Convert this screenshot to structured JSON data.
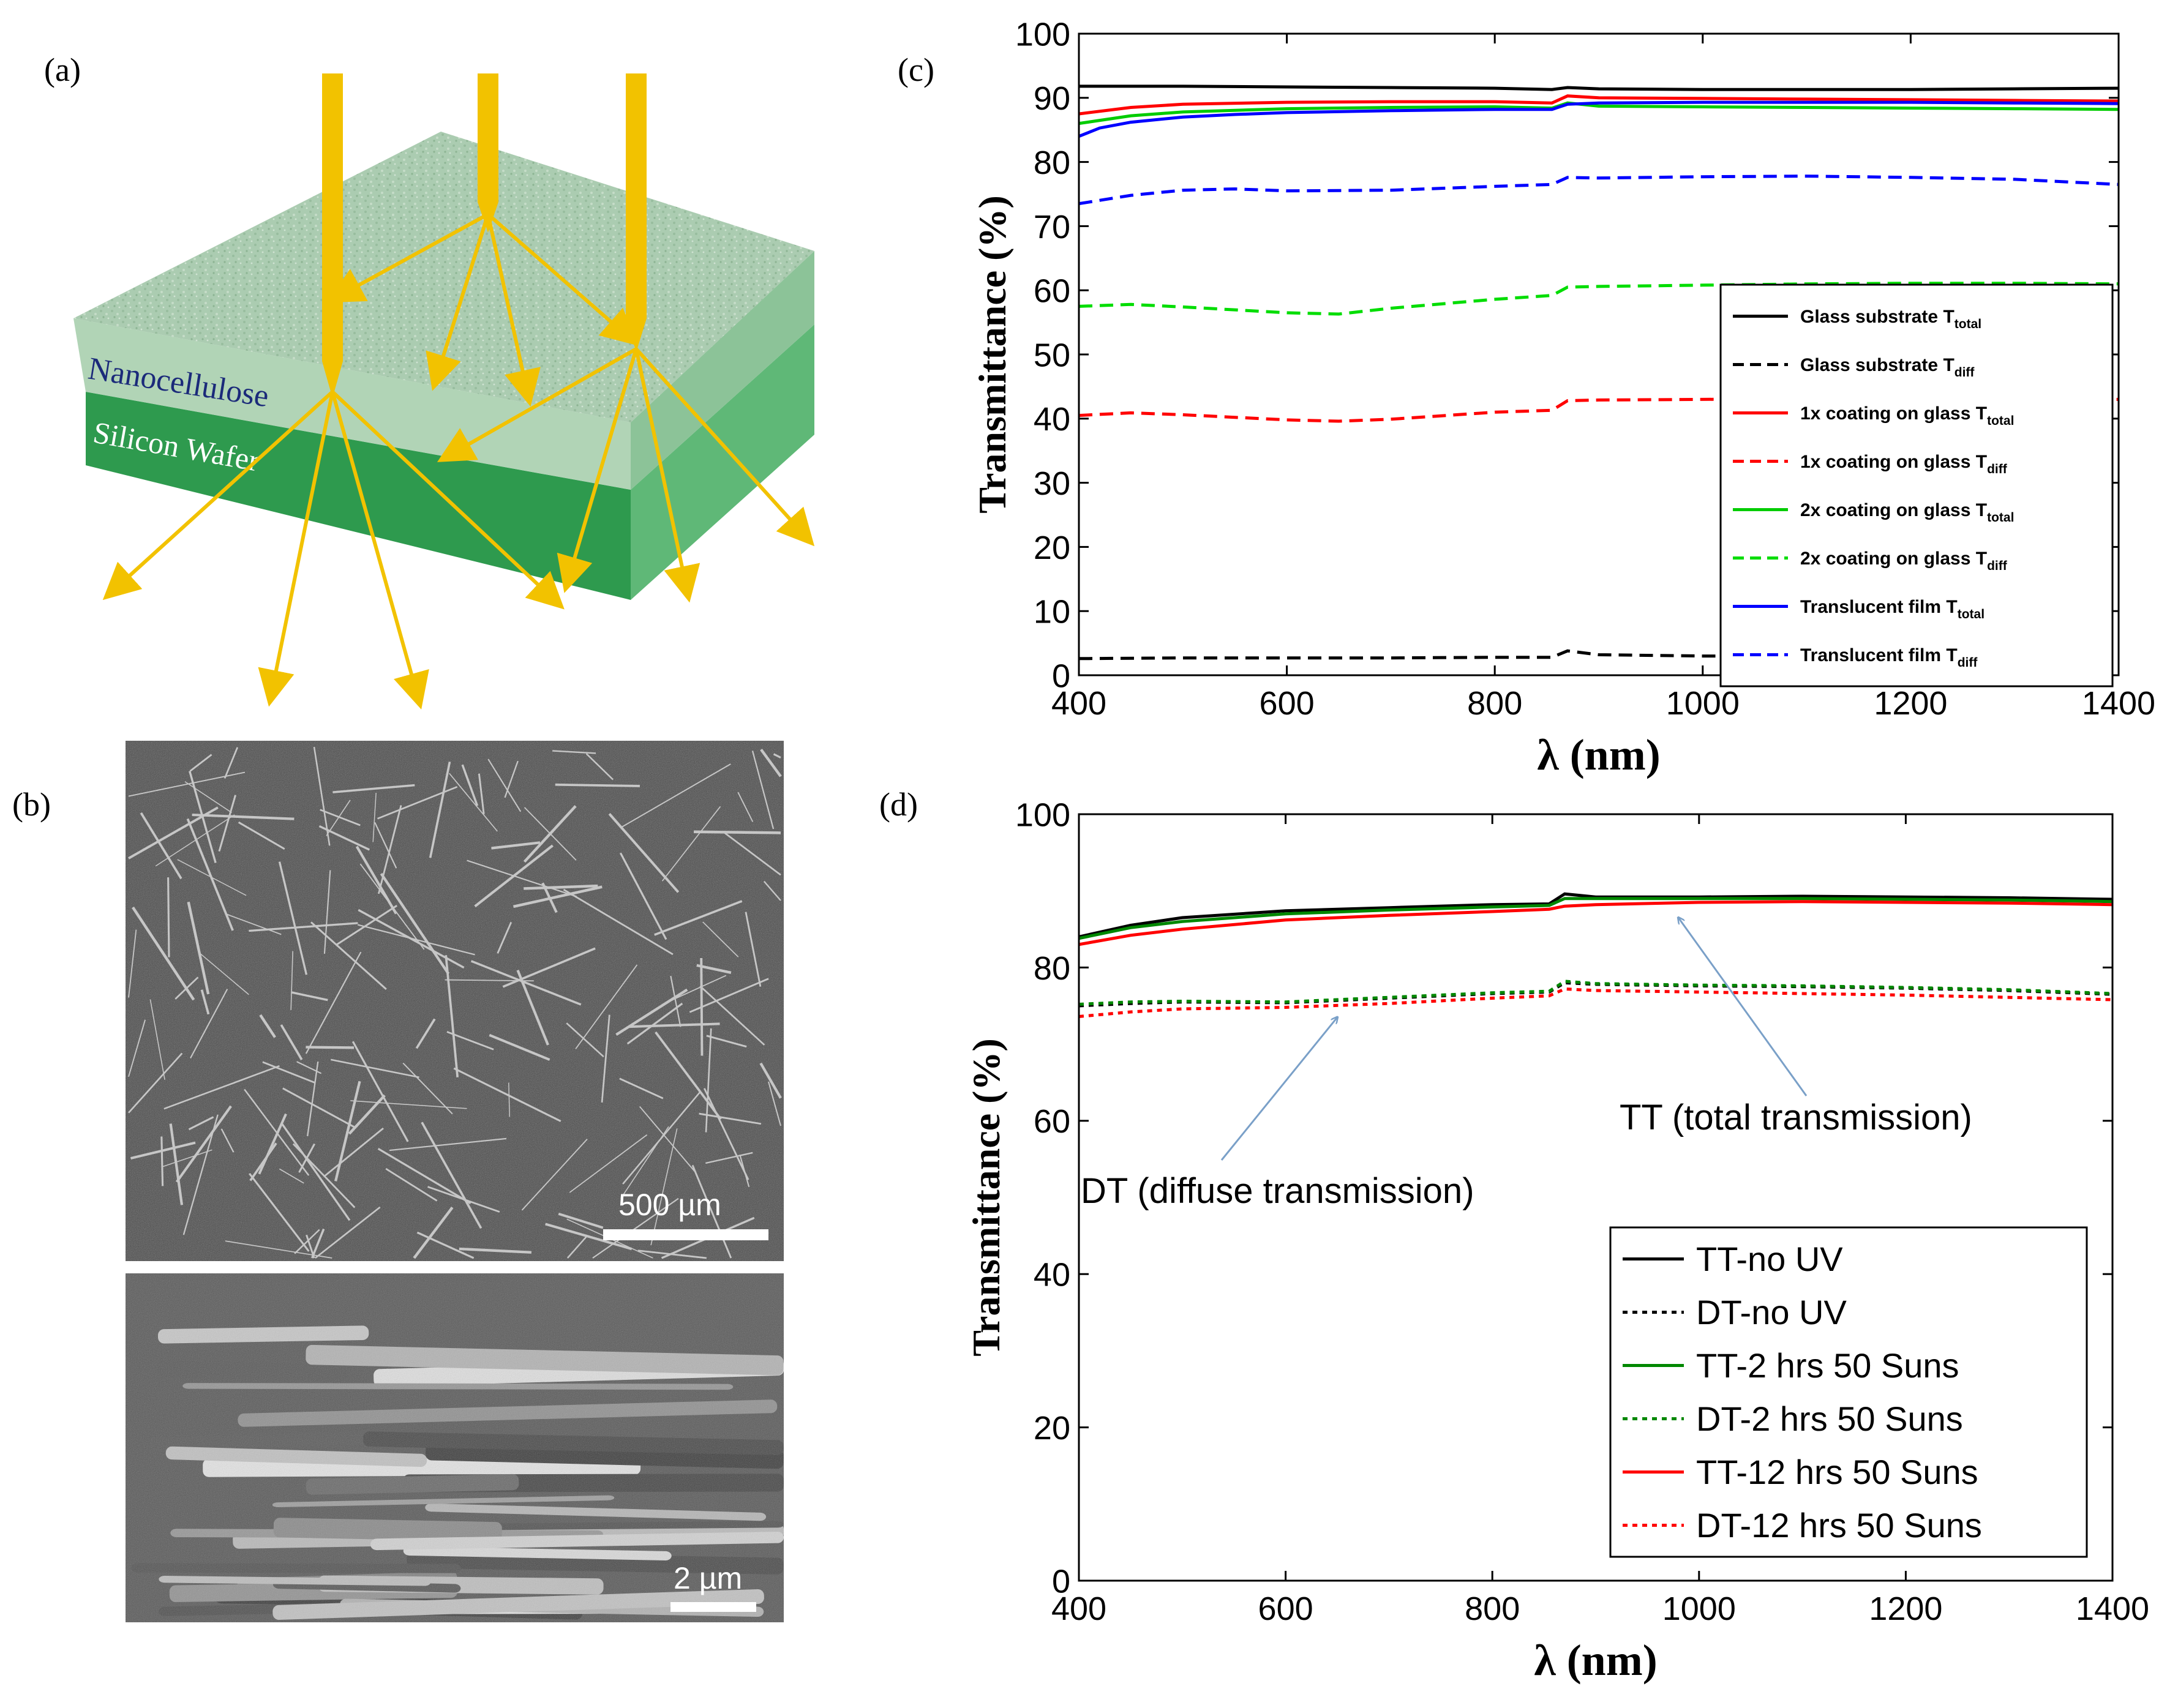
{
  "panels": {
    "a": "(a)",
    "b": "(b)",
    "c": "(c)",
    "d": "(d)"
  },
  "diagram_a": {
    "layer_top_label": "Nanocellulose",
    "layer_bottom_label": "Silicon Wafer",
    "colors": {
      "light_beam": "#f2c200",
      "nanocellulose": "#9cc7a3",
      "silicon": "#2e9a4e"
    }
  },
  "sem_b": {
    "top_scalebar_label": "500 µm",
    "bottom_scalebar_label": "2 µm"
  },
  "chart_data": [
    {
      "panel": "c",
      "type": "line",
      "xlabel": "λ (nm)",
      "ylabel": "Transmittance (%)",
      "xlim": [
        400,
        1400
      ],
      "ylim": [
        0,
        100
      ],
      "xticks": [
        400,
        600,
        800,
        1000,
        1200,
        1400
      ],
      "yticks": [
        0,
        10,
        20,
        30,
        40,
        50,
        60,
        70,
        80,
        90,
        100
      ],
      "legend_position": "right-center",
      "series": [
        {
          "name": "Glass substrate T",
          "sub": "total",
          "color": "#000000",
          "dash": "solid",
          "x": [
            400,
            500,
            600,
            700,
            800,
            855,
            870,
            900,
            1000,
            1100,
            1200,
            1300,
            1400
          ],
          "y": [
            91.8,
            91.8,
            91.7,
            91.6,
            91.5,
            91.3,
            91.6,
            91.4,
            91.3,
            91.3,
            91.3,
            91.4,
            91.5
          ]
        },
        {
          "name": "Glass substrate T",
          "sub": "diff",
          "color": "#000000",
          "dash": "dashed",
          "x": [
            400,
            500,
            600,
            700,
            800,
            855,
            870,
            900,
            1000,
            1100,
            1200,
            1300,
            1400
          ],
          "y": [
            2.6,
            2.7,
            2.7,
            2.7,
            2.8,
            2.8,
            3.8,
            3.2,
            3.0,
            3.0,
            3.0,
            3.0,
            3.0
          ]
        },
        {
          "name": "1x coating on glass T",
          "sub": "total",
          "color": "#ff0000",
          "dash": "solid",
          "x": [
            400,
            450,
            500,
            600,
            700,
            800,
            855,
            870,
            900,
            1000,
            1100,
            1200,
            1300,
            1400
          ],
          "y": [
            87.5,
            88.5,
            89.0,
            89.3,
            89.4,
            89.4,
            89.2,
            90.3,
            90.0,
            89.9,
            89.8,
            89.7,
            89.6,
            89.5
          ]
        },
        {
          "name": "1x coating on glass T",
          "sub": "diff",
          "color": "#ff0000",
          "dash": "dashed",
          "x": [
            400,
            450,
            500,
            600,
            650,
            700,
            800,
            855,
            870,
            900,
            1000,
            1100,
            1200,
            1300,
            1400
          ],
          "y": [
            40.5,
            40.9,
            40.6,
            39.8,
            39.6,
            39.9,
            41.0,
            41.3,
            42.8,
            42.9,
            43.0,
            43.1,
            43.2,
            43.1,
            43.0
          ]
        },
        {
          "name": "2x coating on glass T",
          "sub": "total",
          "color": "#00cc00",
          "dash": "solid",
          "x": [
            400,
            450,
            500,
            600,
            700,
            800,
            855,
            870,
            900,
            1000,
            1100,
            1200,
            1300,
            1400
          ],
          "y": [
            86.0,
            87.2,
            87.8,
            88.3,
            88.5,
            88.6,
            88.4,
            89.2,
            88.7,
            88.6,
            88.5,
            88.4,
            88.3,
            88.2
          ]
        },
        {
          "name": "2x coating on glass T",
          "sub": "diff",
          "color": "#00dd00",
          "dash": "dashed",
          "x": [
            400,
            450,
            500,
            600,
            650,
            700,
            800,
            855,
            870,
            900,
            1000,
            1100,
            1200,
            1300,
            1400
          ],
          "y": [
            57.5,
            57.8,
            57.4,
            56.5,
            56.3,
            57.2,
            58.6,
            59.2,
            60.5,
            60.6,
            60.8,
            61.0,
            61.1,
            61.1,
            61.0
          ]
        },
        {
          "name": "Translucent film T",
          "sub": "total",
          "color": "#0000ff",
          "dash": "solid",
          "x": [
            400,
            420,
            450,
            500,
            550,
            600,
            700,
            800,
            855,
            870,
            900,
            1000,
            1100,
            1200,
            1300,
            1400
          ],
          "y": [
            84.0,
            85.3,
            86.2,
            87.0,
            87.4,
            87.7,
            88.0,
            88.2,
            88.2,
            89.0,
            89.2,
            89.3,
            89.3,
            89.3,
            89.2,
            89.1
          ]
        },
        {
          "name": "Translucent film T",
          "sub": "diff",
          "color": "#0000ff",
          "dash": "dashed",
          "x": [
            400,
            450,
            500,
            550,
            600,
            700,
            800,
            855,
            870,
            900,
            1000,
            1100,
            1200,
            1300,
            1400
          ],
          "y": [
            73.5,
            74.8,
            75.6,
            75.8,
            75.5,
            75.6,
            76.2,
            76.5,
            77.6,
            77.5,
            77.7,
            77.8,
            77.6,
            77.3,
            76.5
          ]
        }
      ]
    },
    {
      "panel": "d",
      "type": "line",
      "xlabel": "λ (nm)",
      "ylabel": "Transmittance (%)",
      "xlim": [
        400,
        1400
      ],
      "ylim": [
        0,
        100
      ],
      "xticks": [
        400,
        600,
        800,
        1000,
        1200,
        1400
      ],
      "yticks": [
        0,
        20,
        40,
        60,
        80,
        100
      ],
      "legend_position": "bottom-right",
      "annotations": [
        {
          "text": "TT (total transmission)",
          "arrow_to": [
            980,
            86.5
          ]
        },
        {
          "text": "DT (diffuse transmission)",
          "arrow_to": [
            650,
            73.5
          ]
        }
      ],
      "series": [
        {
          "name": "TT-no UV",
          "color": "#000000",
          "dash": "solid",
          "x": [
            400,
            450,
            500,
            600,
            700,
            800,
            855,
            870,
            900,
            1000,
            1100,
            1200,
            1300,
            1400
          ],
          "y": [
            84.0,
            85.5,
            86.5,
            87.4,
            87.8,
            88.2,
            88.3,
            89.6,
            89.2,
            89.2,
            89.3,
            89.2,
            89.1,
            88.9
          ]
        },
        {
          "name": "DT-no UV",
          "color": "#000000",
          "dash": "dotted",
          "x": [
            400,
            450,
            500,
            600,
            700,
            800,
            855,
            870,
            900,
            1000,
            1100,
            1200,
            1300,
            1400
          ],
          "y": [
            75.0,
            75.3,
            75.5,
            75.4,
            76.0,
            76.6,
            76.8,
            78.0,
            77.8,
            77.6,
            77.5,
            77.3,
            77.0,
            76.5
          ]
        },
        {
          "name": "TT-2 hrs 50 Suns",
          "color": "#008800",
          "dash": "solid",
          "x": [
            400,
            450,
            500,
            600,
            700,
            800,
            855,
            870,
            900,
            1000,
            1100,
            1200,
            1300,
            1400
          ],
          "y": [
            83.8,
            85.2,
            86.0,
            87.0,
            87.5,
            87.9,
            88.1,
            89.0,
            89.0,
            89.0,
            89.0,
            88.9,
            88.8,
            88.6
          ]
        },
        {
          "name": "DT-2 hrs 50 Suns",
          "color": "#008800",
          "dash": "dotted",
          "x": [
            400,
            450,
            500,
            600,
            700,
            800,
            855,
            870,
            900,
            1000,
            1100,
            1200,
            1300,
            1400
          ],
          "y": [
            75.2,
            75.5,
            75.6,
            75.5,
            76.1,
            76.7,
            76.9,
            78.2,
            77.9,
            77.7,
            77.6,
            77.4,
            77.1,
            76.6
          ]
        },
        {
          "name": "TT-12 hrs 50 Suns",
          "color": "#ff0000",
          "dash": "solid",
          "x": [
            400,
            450,
            500,
            600,
            700,
            800,
            855,
            870,
            900,
            1000,
            1100,
            1200,
            1300,
            1400
          ],
          "y": [
            83.0,
            84.2,
            85.0,
            86.2,
            86.8,
            87.3,
            87.6,
            88.0,
            88.2,
            88.5,
            88.6,
            88.5,
            88.4,
            88.2
          ]
        },
        {
          "name": "DT-12 hrs 50 Suns",
          "color": "#ff0000",
          "dash": "dotted",
          "x": [
            400,
            450,
            500,
            600,
            700,
            800,
            855,
            870,
            900,
            1000,
            1100,
            1200,
            1300,
            1400
          ],
          "y": [
            73.6,
            74.2,
            74.6,
            74.8,
            75.3,
            76.0,
            76.3,
            77.2,
            77.0,
            76.8,
            76.6,
            76.4,
            76.1,
            75.8
          ]
        }
      ]
    }
  ]
}
